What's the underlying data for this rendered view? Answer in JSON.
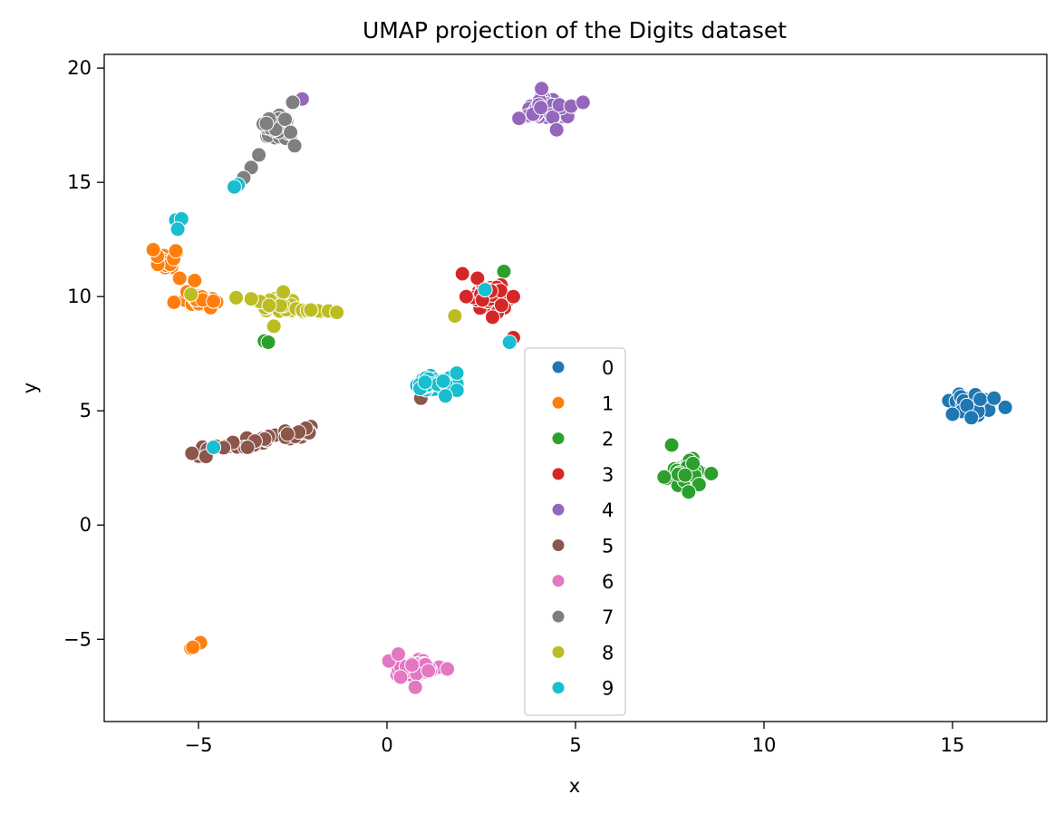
{
  "chart_data": {
    "type": "scatter",
    "title": "UMAP projection of the Digits dataset",
    "xlabel": "x",
    "ylabel": "y",
    "xlim": [
      -7.5,
      17.5
    ],
    "ylim": [
      -8.6,
      20.6
    ],
    "xticks": [
      -5,
      0,
      5,
      10,
      15
    ],
    "yticks": [
      -5,
      0,
      5,
      10,
      15,
      20
    ],
    "xtick_labels": [
      "−5",
      "0",
      "5",
      "10",
      "15"
    ],
    "ytick_labels": [
      "−5",
      "0",
      "5",
      "10",
      "15",
      "20"
    ],
    "grid": false,
    "legend": {
      "placement": "center-bottom",
      "entries": [
        "0",
        "1",
        "2",
        "3",
        "4",
        "5",
        "6",
        "7",
        "8",
        "9"
      ]
    },
    "series": [
      {
        "name": "0",
        "color": "#1f77b4",
        "clusters": [
          {
            "cx": 15.5,
            "cy": 5.25,
            "rx": 0.6,
            "ry": 0.55,
            "n": 60
          }
        ],
        "points": [
          [
            16.4,
            5.15
          ],
          [
            15.0,
            4.85
          ],
          [
            16.1,
            5.55
          ],
          [
            15.5,
            4.7
          ]
        ]
      },
      {
        "name": "1",
        "color": "#ff7f0e",
        "clusters": [
          {
            "cx": -4.95,
            "cy": 9.8,
            "rx": 0.55,
            "ry": 0.3,
            "n": 25
          },
          {
            "cx": -5.8,
            "cy": 11.6,
            "rx": 0.35,
            "ry": 0.5,
            "n": 14
          }
        ],
        "points": [
          [
            -6.2,
            12.05
          ],
          [
            -5.6,
            12.0
          ],
          [
            -5.5,
            10.8
          ],
          [
            -5.3,
            10.2
          ],
          [
            -5.1,
            10.7
          ],
          [
            -5.65,
            9.75
          ],
          [
            -4.6,
            9.8
          ],
          [
            -5.2,
            -5.4
          ],
          [
            -4.95,
            -5.15
          ],
          [
            -5.15,
            -5.35
          ]
        ]
      },
      {
        "name": "2",
        "color": "#2ca02c",
        "clusters": [
          {
            "cx": 7.95,
            "cy": 2.3,
            "rx": 0.55,
            "ry": 0.65,
            "n": 45
          }
        ],
        "points": [
          [
            7.55,
            3.5
          ],
          [
            8.6,
            2.25
          ],
          [
            7.35,
            2.1
          ],
          [
            8.0,
            1.45
          ],
          [
            3.1,
            11.1
          ],
          [
            -3.25,
            8.05
          ],
          [
            -3.15,
            8.0
          ]
        ]
      },
      {
        "name": "3",
        "color": "#d62728",
        "clusters": [
          {
            "cx": 2.8,
            "cy": 9.9,
            "rx": 0.55,
            "ry": 0.65,
            "n": 60
          }
        ],
        "points": [
          [
            2.0,
            11.0
          ],
          [
            2.4,
            10.8
          ],
          [
            2.1,
            10.0
          ],
          [
            3.35,
            10.0
          ],
          [
            3.35,
            8.2
          ],
          [
            2.8,
            9.1
          ]
        ]
      },
      {
        "name": "4",
        "color": "#9467bd",
        "clusters": [
          {
            "cx": 4.25,
            "cy": 18.2,
            "rx": 0.85,
            "ry": 0.6,
            "n": 55
          }
        ],
        "points": [
          [
            5.2,
            18.5
          ],
          [
            4.1,
            19.1
          ],
          [
            3.5,
            17.8
          ],
          [
            4.5,
            17.3
          ],
          [
            -2.25,
            18.65
          ]
        ]
      },
      {
        "name": "5",
        "color": "#8c564b",
        "clusters": [],
        "line": {
          "x0": -5.2,
          "y0": 3.1,
          "x1": -2.0,
          "y1": 4.15,
          "n": 55,
          "spread": 0.2
        },
        "points": [
          [
            0.9,
            5.55
          ],
          [
            -4.8,
            3.0
          ],
          [
            -3.7,
            3.4
          ]
        ]
      },
      {
        "name": "6",
        "color": "#e377c2",
        "clusters": [
          {
            "cx": 0.7,
            "cy": -6.3,
            "rx": 0.8,
            "ry": 0.45,
            "n": 60
          }
        ],
        "points": [
          [
            0.75,
            -7.1
          ],
          [
            1.6,
            -6.3
          ],
          [
            0.05,
            -5.95
          ],
          [
            0.3,
            -5.65
          ]
        ]
      },
      {
        "name": "7",
        "color": "#7f7f7f",
        "clusters": [
          {
            "cx": -2.9,
            "cy": 17.4,
            "rx": 0.45,
            "ry": 0.75,
            "n": 50
          }
        ],
        "points": [
          [
            -3.6,
            15.65
          ],
          [
            -3.4,
            16.2
          ],
          [
            -3.8,
            15.2
          ],
          [
            -2.5,
            18.5
          ],
          [
            -2.45,
            16.6
          ]
        ]
      },
      {
        "name": "8",
        "color": "#bcbd22",
        "clusters": [
          {
            "cx": -2.9,
            "cy": 9.6,
            "rx": 0.55,
            "ry": 0.4,
            "n": 40
          }
        ],
        "line": {
          "x0": -2.5,
          "y0": 9.4,
          "x1": -1.2,
          "y1": 9.3,
          "n": 14,
          "spread": 0.08
        },
        "points": [
          [
            -4.0,
            9.95
          ],
          [
            -3.6,
            9.9
          ],
          [
            -5.2,
            10.1
          ],
          [
            1.8,
            9.15
          ],
          [
            -3.0,
            8.7
          ],
          [
            -2.75,
            10.2
          ]
        ]
      },
      {
        "name": "9",
        "color": "#17becf",
        "clusters": [
          {
            "cx": 1.3,
            "cy": 6.2,
            "rx": 0.65,
            "ry": 0.45,
            "n": 45
          }
        ],
        "points": [
          [
            -5.6,
            13.35
          ],
          [
            -5.45,
            13.4
          ],
          [
            -5.55,
            12.95
          ],
          [
            -3.95,
            14.9
          ],
          [
            -4.05,
            14.8
          ],
          [
            -4.6,
            3.4
          ],
          [
            3.25,
            8.0
          ],
          [
            2.6,
            10.3
          ],
          [
            1.55,
            5.65
          ],
          [
            1.85,
            6.65
          ]
        ]
      }
    ]
  }
}
